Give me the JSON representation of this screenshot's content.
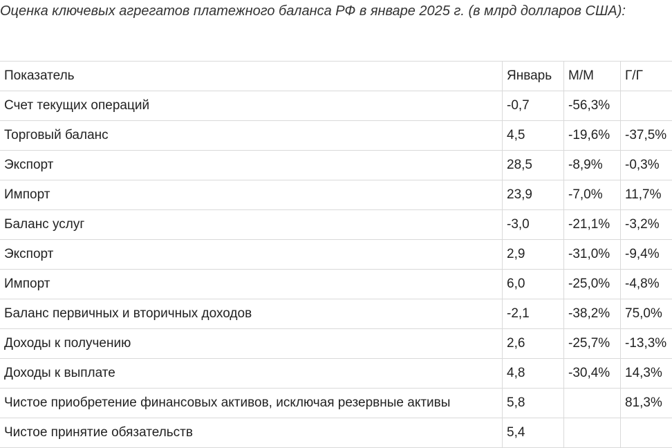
{
  "title": "Оценка ключевых агрегатов платежного баланса РФ в январе 2025 г. (в млрд долларов США):",
  "table": {
    "headers": [
      "Показатель",
      "Январь",
      "М/М",
      "Г/Г"
    ],
    "rows": [
      [
        "Счет текущих операций",
        "-0,7",
        "-56,3%",
        ""
      ],
      [
        "Торговый баланс",
        "4,5",
        "-19,6%",
        "-37,5%"
      ],
      [
        "Экспорт",
        "28,5",
        "-8,9%",
        "-0,3%"
      ],
      [
        "Импорт",
        "23,9",
        "-7,0%",
        "11,7%"
      ],
      [
        "Баланс услуг",
        "-3,0",
        "-21,1%",
        "-3,2%"
      ],
      [
        "Экспорт",
        "2,9",
        "-31,0%",
        "-9,4%"
      ],
      [
        "Импорт",
        "6,0",
        "-25,0%",
        "-4,8%"
      ],
      [
        "Баланс первичных и вторичных доходов",
        "-2,1",
        "-38,2%",
        "75,0%"
      ],
      [
        "Доходы к получению",
        "2,6",
        "-25,7%",
        "-13,3%"
      ],
      [
        "Доходы к выплате",
        "4,8",
        "-30,4%",
        "14,3%"
      ],
      [
        "Чистое приобретение финансовых активов, исключая резервные активы",
        "5,8",
        "",
        "81,3%"
      ],
      [
        "Чистое принятие обязательств",
        "5,4",
        "",
        ""
      ]
    ]
  }
}
